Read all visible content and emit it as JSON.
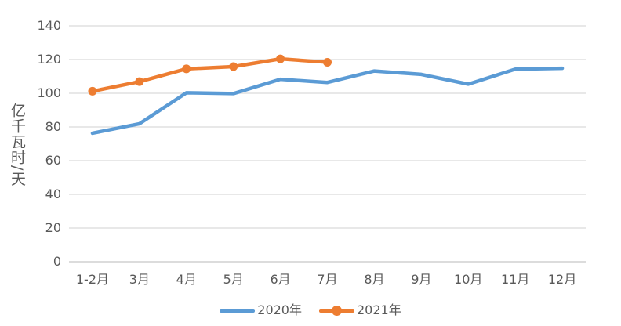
{
  "chart_data": {
    "type": "line",
    "title": "",
    "xlabel": "",
    "ylabel": "亿千瓦时/天",
    "ylim": [
      0,
      140
    ],
    "ytick_step": 20,
    "grid": true,
    "legend_position": "bottom-center",
    "categories": [
      "1-2月",
      "3月",
      "4月",
      "5月",
      "6月",
      "7月",
      "8月",
      "9月",
      "10月",
      "11月",
      "12月"
    ],
    "series": [
      {
        "name": "2020年",
        "color": "#5B9BD5",
        "marker": "none",
        "values": [
          76.3,
          81.9,
          100.3,
          99.8,
          108.3,
          106.4,
          113.2,
          111.2,
          105.4,
          114.3,
          114.8
        ]
      },
      {
        "name": "2021年",
        "color": "#ED7D31",
        "marker": "circle",
        "values": [
          101.2,
          106.9,
          114.5,
          115.8,
          120.4,
          118.4
        ]
      }
    ]
  },
  "colors": {
    "background": "#FFFFFF",
    "gridline": "#D9D9D9",
    "axis_line": "#C6C6C6",
    "tick_text": "#595959"
  }
}
